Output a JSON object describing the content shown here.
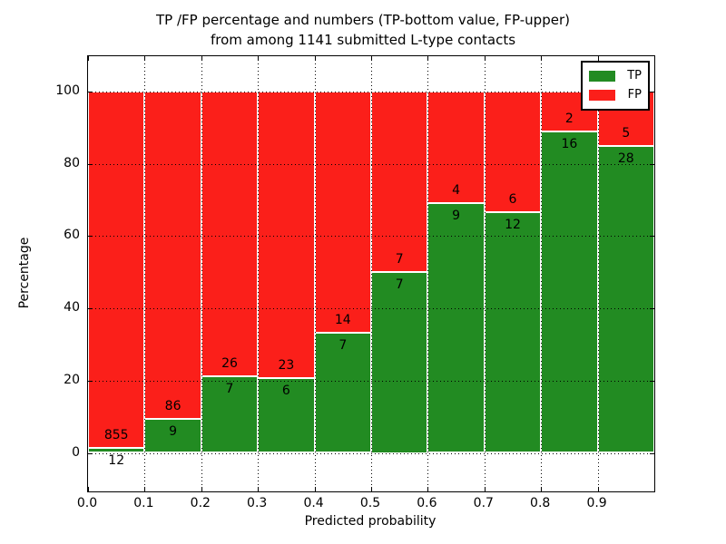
{
  "figure": {
    "title_line1": "TP /FP percentage and numbers (TP-bottom value, FP-upper)",
    "title_line2": "from among 1141 submitted L-type contacts",
    "xlabel": "Predicted probability",
    "ylabel": "Percentage"
  },
  "chart_data": {
    "type": "bar",
    "stacked": true,
    "normalized": "each bar totals 100%",
    "title": "TP /FP percentage and numbers (TP-bottom value, FP-upper) from among 1141 submitted L-type contacts",
    "xlabel": "Predicted probability",
    "ylabel": "Percentage",
    "total_contacts": 1141,
    "bin_width": 0.1,
    "x_bin_starts": [
      0.0,
      0.1,
      0.2,
      0.3,
      0.4,
      0.5,
      0.6,
      0.7,
      0.8,
      0.9
    ],
    "series": [
      {
        "name": "TP",
        "color": "#228b22",
        "values": [
          12,
          9,
          7,
          6,
          7,
          7,
          9,
          12,
          16,
          28
        ]
      },
      {
        "name": "FP",
        "color": "#fb1f1a",
        "values": [
          855,
          86,
          26,
          23,
          14,
          7,
          4,
          6,
          2,
          5
        ]
      }
    ],
    "tp_percent_of_bin": [
      1.4,
      9.5,
      21.2,
      20.7,
      33.3,
      50.0,
      69.2,
      66.7,
      88.9,
      84.8
    ],
    "xlim": [
      0.0,
      1.0
    ],
    "ylim": [
      -12,
      110
    ],
    "xticks": [
      "0.0",
      "0.1",
      "0.2",
      "0.3",
      "0.4",
      "0.5",
      "0.6",
      "0.7",
      "0.8",
      "0.9"
    ],
    "yticks": [
      "0",
      "20",
      "40",
      "60",
      "80",
      "100"
    ],
    "grid": "dotted, drawn over bars",
    "legend": {
      "position": "upper right",
      "entries": [
        {
          "label": "TP",
          "color": "#228b22"
        },
        {
          "label": "FP",
          "color": "#fb1f1a"
        }
      ]
    }
  }
}
